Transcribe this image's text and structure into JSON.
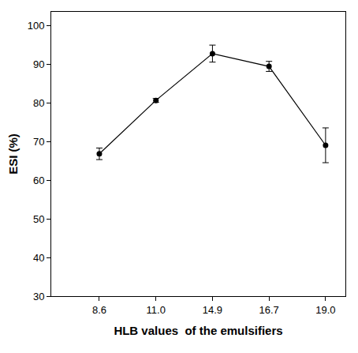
{
  "chart_data": {
    "type": "line",
    "x_label": "HLB values  of the emulsifiers",
    "y_label": "ESI (%)",
    "categories": [
      "8.6",
      "11.0",
      "14.9",
      "16.7",
      "19.0"
    ],
    "values": [
      66.8,
      80.6,
      92.7,
      89.4,
      69.0
    ],
    "error": [
      1.5,
      0.5,
      2.2,
      1.3,
      4.5
    ],
    "color": "#000000",
    "marker": "circle",
    "line_style": "solid",
    "ylim": [
      30,
      103.5
    ],
    "yticks": [
      30,
      40,
      50,
      60,
      70,
      80,
      90,
      100
    ],
    "grid": false
  }
}
